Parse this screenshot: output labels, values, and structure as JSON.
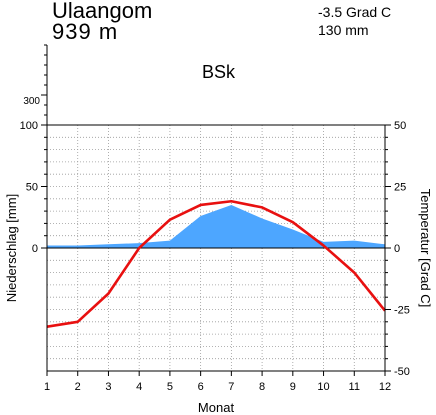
{
  "header": {
    "station": "Ulaangom",
    "elevation": "939  m",
    "mean_temperature": "-3.5  Grad  C",
    "annual_precipitation": "130  mm",
    "climate_class": "BSk"
  },
  "chart_data": {
    "type": "area",
    "title": "",
    "xlabel": "Monat",
    "ylabel_left": "Niederschlag [mm]",
    "ylabel_right": "Temperatur [Grad C]",
    "x": [
      1,
      2,
      3,
      4,
      5,
      6,
      7,
      8,
      9,
      10,
      11,
      12
    ],
    "x_tick_labels": [
      "1",
      "2",
      "3",
      "4",
      "5",
      "6",
      "7",
      "8",
      "9",
      "10",
      "11",
      "12"
    ],
    "left_axis": {
      "range": [
        -100,
        100
      ],
      "tick_labels": [
        "0",
        "50",
        "100"
      ],
      "upper_scale_label": "300"
    },
    "right_axis": {
      "range": [
        -50,
        50
      ],
      "tick_labels": [
        "-50",
        "-25",
        "0",
        "25",
        "50"
      ]
    },
    "grid": true,
    "series": [
      {
        "name": "Niederschlag",
        "kind": "area",
        "axis": "left",
        "color": "#4da6ff",
        "values": [
          2,
          2,
          3,
          4,
          6,
          26,
          35,
          24,
          15,
          5,
          6,
          3
        ]
      },
      {
        "name": "Temperatur",
        "kind": "line",
        "axis": "right",
        "color": "#e81010",
        "values": [
          -32,
          -30,
          -18.5,
          0,
          11.5,
          17.5,
          19,
          16.5,
          10.5,
          1,
          -10,
          -25.5
        ]
      }
    ]
  }
}
